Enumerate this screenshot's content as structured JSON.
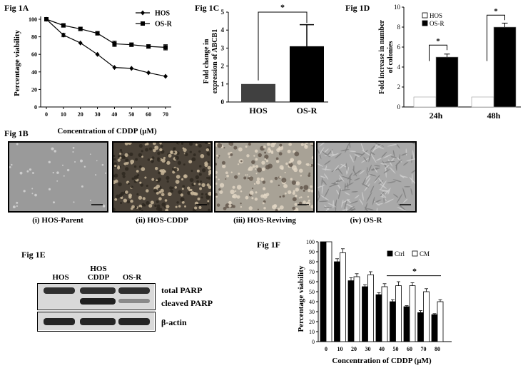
{
  "panels": {
    "fig1a": {
      "label": "Fig 1A"
    },
    "fig1b": {
      "label": "Fig 1B"
    },
    "fig1c": {
      "label": "Fig 1C"
    },
    "fig1d": {
      "label": "Fig 1D"
    },
    "fig1e": {
      "label": "Fig 1E"
    },
    "fig1f": {
      "label": "Fig 1F"
    }
  },
  "micrographs": [
    {
      "caption": "(i) HOS-Parent",
      "style": "sparse"
    },
    {
      "caption": "(ii) HOS-CDDP",
      "style": "dense"
    },
    {
      "caption": "(iii) HOS-Reviving",
      "style": "cluster"
    },
    {
      "caption": "(iv) OS-R",
      "style": "spindle"
    }
  ],
  "western_blot": {
    "columns": [
      "HOS",
      "HOS\nCDDP",
      "OS-R"
    ],
    "bands": [
      "total PARP",
      "cleaved PARP",
      "β-actin"
    ]
  },
  "chart_data": [
    {
      "id": "fig1a",
      "type": "line",
      "xlabel": "Concentration of CDDP (µM)",
      "ylabel": "Percentage viability",
      "x": [
        0,
        10,
        20,
        30,
        40,
        50,
        60,
        70
      ],
      "xlim": [
        0,
        70
      ],
      "ylim": [
        0,
        100
      ],
      "yticks": [
        0,
        20,
        40,
        60,
        80,
        100
      ],
      "legend_position": "top-right",
      "series": [
        {
          "name": "HOS",
          "marker": "diamond",
          "values": [
            100,
            82,
            73,
            60,
            45,
            44,
            39,
            35
          ],
          "errors": [
            0,
            2,
            0,
            0,
            0,
            0,
            0,
            0
          ]
        },
        {
          "name": "OS-R",
          "marker": "square",
          "values": [
            100,
            93,
            89,
            84,
            72,
            71,
            69,
            68
          ],
          "errors": [
            0,
            2,
            2,
            2,
            3,
            2,
            2,
            3
          ]
        }
      ]
    },
    {
      "id": "fig1c",
      "type": "bar",
      "ylabel": "Fold change in\nexpression of ABCB1",
      "categories": [
        "HOS",
        "OS-R"
      ],
      "values": [
        1.0,
        3.1
      ],
      "errors": [
        0,
        1.2
      ],
      "colors": [
        "#404040",
        "#000000"
      ],
      "ylim": [
        0,
        5
      ],
      "yticks": [
        0,
        1,
        2,
        3,
        4,
        5
      ],
      "annotations": [
        "*"
      ]
    },
    {
      "id": "fig1d",
      "type": "bar",
      "ylabel": "Fold increase in number\nof colonies",
      "categories": [
        "24h",
        "48h"
      ],
      "ylim": [
        0,
        10
      ],
      "yticks": [
        0,
        2,
        4,
        6,
        8,
        10
      ],
      "legend_position": "top-left",
      "series": [
        {
          "name": "HOS",
          "color": "#ffffff",
          "values": [
            1.0,
            1.0
          ],
          "errors": [
            0,
            0
          ]
        },
        {
          "name": "OS-R",
          "color": "#000000",
          "values": [
            5.0,
            8.0
          ],
          "errors": [
            0.3,
            0.4
          ]
        }
      ],
      "annotations": [
        "*",
        "*"
      ]
    },
    {
      "id": "fig1f",
      "type": "bar",
      "xlabel": "Concentration of CDDP (µM)",
      "ylabel": "Percentage viability",
      "categories": [
        "0",
        "10",
        "20",
        "30",
        "40",
        "50",
        "60",
        "70",
        "80"
      ],
      "ylim": [
        0,
        100
      ],
      "yticks": [
        0,
        10,
        20,
        30,
        40,
        50,
        60,
        70,
        80,
        90,
        100
      ],
      "legend_position": "top-right",
      "series": [
        {
          "name": "Ctrl",
          "color": "#000000",
          "values": [
            100,
            80,
            61,
            55,
            47,
            40,
            35,
            29,
            27
          ],
          "errors": [
            0,
            3,
            3,
            2,
            2,
            2,
            1,
            2,
            1
          ]
        },
        {
          "name": "CM",
          "color": "#ffffff",
          "values": [
            100,
            89,
            65,
            67,
            55,
            56,
            56,
            50,
            40
          ],
          "errors": [
            0,
            4,
            3,
            3,
            3,
            4,
            3,
            3,
            2
          ]
        }
      ],
      "annotations": [
        "*"
      ]
    }
  ]
}
